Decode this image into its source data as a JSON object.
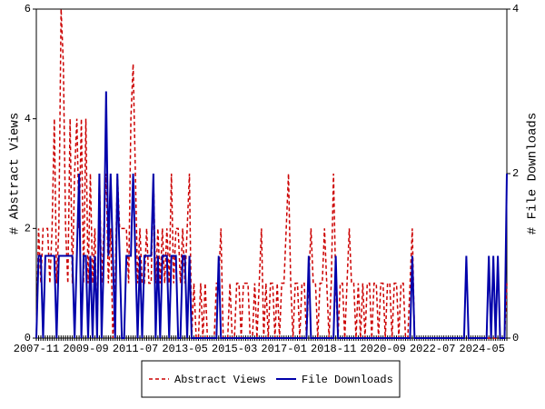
{
  "chart_data": {
    "type": "line",
    "y_label": "# Abstract Views",
    "y2_label": "# File Downloads",
    "ylim": [
      0,
      6
    ],
    "yticks": [
      0,
      2,
      4,
      6
    ],
    "y2lim": [
      0,
      4
    ],
    "y2ticks": [
      0,
      2,
      4
    ],
    "legend": "bottom",
    "categories": [
      "2007-11",
      null,
      null,
      null,
      null,
      null,
      null,
      null,
      null,
      null,
      null,
      null,
      null,
      null,
      null,
      null,
      null,
      null,
      null,
      null,
      null,
      null,
      "2009-09",
      null,
      null,
      null,
      null,
      null,
      null,
      null,
      null,
      null,
      null,
      null,
      null,
      null,
      null,
      null,
      null,
      null,
      null,
      null,
      null,
      null,
      "2011-07",
      null,
      null,
      null,
      null,
      null,
      null,
      null,
      null,
      null,
      null,
      null,
      null,
      null,
      null,
      null,
      null,
      null,
      null,
      null,
      null,
      null,
      "2013-05",
      null,
      null,
      null,
      null,
      null,
      null,
      null,
      null,
      null,
      null,
      null,
      null,
      null,
      null,
      null,
      null,
      null,
      null,
      null,
      null,
      null,
      "2015-03",
      null,
      null,
      null,
      null,
      null,
      null,
      null,
      null,
      null,
      null,
      null,
      null,
      null,
      null,
      null,
      null,
      null,
      null,
      null,
      null,
      null,
      "2017-01",
      null,
      null,
      null,
      null,
      null,
      null,
      null,
      null,
      null,
      null,
      null,
      null,
      null,
      null,
      null,
      null,
      null,
      null,
      null,
      null,
      null,
      "2018-11",
      null,
      null,
      null,
      null,
      null,
      null,
      null,
      null,
      null,
      null,
      null,
      null,
      null,
      null,
      null,
      null,
      null,
      null,
      null,
      null,
      null,
      "2020-09",
      null,
      null,
      null,
      null,
      null,
      null,
      null,
      null,
      null,
      null,
      null,
      null,
      null,
      null,
      null,
      null,
      null,
      null,
      null,
      null,
      null,
      "2022-07",
      null,
      null,
      null,
      null,
      null,
      null,
      null,
      null,
      null,
      null,
      null,
      null,
      null,
      null,
      null,
      null,
      null,
      null,
      null,
      null,
      null,
      "2024-05",
      null,
      null,
      null,
      null,
      null,
      null,
      null,
      null,
      null,
      null,
      null
    ],
    "series": [
      {
        "name": "Abstract Views",
        "color": "#cc0000",
        "dash": true,
        "values": [
          0,
          2,
          1,
          2,
          2,
          2,
          1,
          2,
          4,
          1,
          2,
          6,
          5,
          2,
          1,
          4,
          1,
          3,
          4,
          2,
          4,
          1,
          4,
          1,
          3,
          1,
          2,
          0,
          3,
          1,
          2,
          3,
          1,
          2,
          0,
          1,
          3,
          2,
          2,
          2,
          2,
          1,
          4,
          5,
          3,
          1,
          2,
          1,
          1,
          2,
          1,
          1,
          3,
          1,
          2,
          1,
          2,
          1,
          2,
          1,
          3,
          1,
          2,
          2,
          1,
          2,
          1,
          2,
          3,
          0,
          1,
          0,
          0,
          1,
          0,
          1,
          0,
          0,
          0,
          0,
          1,
          1,
          2,
          0,
          0,
          0,
          1,
          0,
          0,
          1,
          1,
          0,
          1,
          1,
          1,
          0,
          0,
          1,
          0,
          1,
          2,
          0,
          1,
          0,
          1,
          1,
          0,
          1,
          0,
          1,
          1,
          2,
          3,
          1,
          0,
          1,
          1,
          0,
          1,
          1,
          0,
          1,
          2,
          1,
          1,
          0,
          1,
          1,
          2,
          1,
          0,
          1,
          3,
          1,
          0,
          1,
          1,
          0,
          1,
          2,
          1,
          1,
          0,
          1,
          0,
          1,
          0,
          1,
          1,
          0,
          1,
          1,
          0,
          1,
          1,
          0,
          1,
          1,
          0,
          1,
          1,
          0,
          1,
          1,
          0,
          0,
          1,
          2,
          0,
          0,
          0,
          0,
          0,
          0,
          0,
          0,
          0,
          0,
          0,
          0,
          0,
          0,
          0,
          0,
          0,
          0,
          0,
          0,
          0,
          0,
          0,
          0,
          0,
          0,
          0,
          0,
          0,
          0,
          0,
          0,
          0,
          0,
          0,
          0,
          0,
          0,
          0,
          0,
          0,
          1
        ]
      },
      {
        "name": "File Downloads",
        "color": "#0000aa",
        "axis": "y2",
        "values": [
          0,
          1,
          1,
          0,
          1,
          1,
          1,
          1,
          1,
          0,
          1,
          1,
          1,
          1,
          1,
          1,
          1,
          0,
          1,
          2,
          0,
          1,
          1,
          0,
          1,
          0,
          1,
          0,
          2,
          0,
          1,
          3,
          1,
          2,
          1,
          0,
          2,
          1,
          0,
          0,
          1,
          1,
          1,
          2,
          1,
          0,
          1,
          0,
          1,
          1,
          1,
          1,
          2,
          0,
          1,
          0,
          1,
          1,
          1,
          0,
          1,
          1,
          1,
          0,
          0,
          1,
          1,
          0,
          1,
          0,
          0,
          0,
          0,
          0,
          0,
          0,
          0,
          0,
          0,
          0,
          0,
          1,
          0,
          0,
          0,
          0,
          0,
          0,
          0,
          0,
          0,
          0,
          0,
          0,
          0,
          0,
          0,
          0,
          0,
          0,
          0,
          0,
          0,
          0,
          0,
          0,
          0,
          0,
          0,
          0,
          0,
          0,
          0,
          0,
          0,
          0,
          0,
          0,
          0,
          0,
          0,
          1,
          0,
          0,
          0,
          0,
          0,
          0,
          0,
          0,
          0,
          0,
          0,
          1,
          0,
          0,
          0,
          0,
          0,
          0,
          0,
          0,
          0,
          0,
          0,
          0,
          0,
          0,
          0,
          0,
          0,
          0,
          0,
          0,
          0,
          0,
          0,
          0,
          0,
          0,
          0,
          0,
          0,
          0,
          0,
          0,
          0,
          1,
          0,
          0,
          0,
          0,
          0,
          0,
          0,
          0,
          0,
          0,
          0,
          0,
          0,
          0,
          0,
          0,
          0,
          0,
          0,
          0,
          0,
          0,
          0,
          1,
          0,
          0,
          0,
          0,
          0,
          0,
          0,
          0,
          0,
          1,
          0,
          1,
          0,
          1,
          0,
          0,
          0,
          2
        ]
      }
    ]
  }
}
